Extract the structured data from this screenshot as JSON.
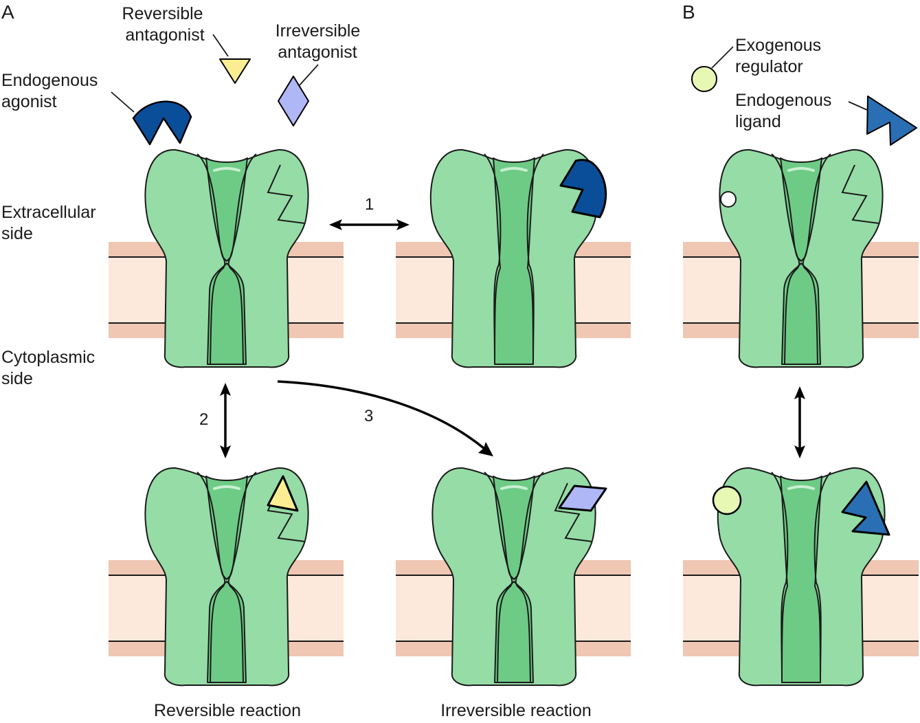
{
  "panels": {
    "a": "A",
    "b": "B"
  },
  "labels": {
    "reversible_antagonist": [
      "Reversible",
      "antagonist"
    ],
    "irreversible_antagonist": [
      "Irreversible",
      "antagonist"
    ],
    "endogenous_agonist": [
      "Endogenous",
      "agonist"
    ],
    "extracellular_side": [
      "Extracellular",
      "side"
    ],
    "cytoplasmic_side": [
      "Cytoplasmic",
      "side"
    ],
    "exogenous_regulator": [
      "Exogenous",
      "regulator"
    ],
    "endogenous_ligand": [
      "Endogenous",
      "ligand"
    ]
  },
  "reactions": {
    "r1": "1",
    "r2": "2",
    "r3": "3"
  },
  "captions": {
    "reversible": "Reversible reaction",
    "irreversible": "Irreversible reaction"
  },
  "colors": {
    "channel": "#95dca6",
    "pore": "#6ecb86",
    "membrane_band": "#efc7b3",
    "membrane_core": "#fde9dc",
    "agonist": "#0a4e9a",
    "reversible_antagonist": "#fbee92",
    "irreversible_antagonist": "#b0b7f7",
    "exogenous_regulator": "#e6f8b4",
    "endogenous_ligand": "#2a6fb3"
  }
}
